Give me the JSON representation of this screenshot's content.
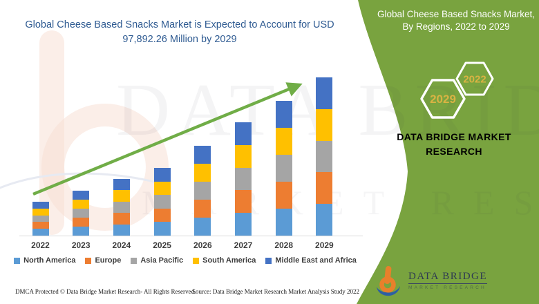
{
  "left_panel": {
    "title": "Global Cheese Based Snacks Market is Expected to Account for USD 97,892.26 Million by 2029"
  },
  "right_panel": {
    "title": "Global Cheese Based Snacks Market, By Regions, 2022 to 2029",
    "hexagons": [
      {
        "label": "2022"
      },
      {
        "label": "2029"
      }
    ],
    "brand_text": "DATA BRIDGE MARKET RESEARCH",
    "logo": {
      "wordmark": "DATA BRIDGE",
      "subtitle": "MARKET RESEARCH"
    },
    "bg_color": "#79A33F",
    "accent_gold": "#D9B343",
    "title_color": "#FFFFFF"
  },
  "watermark": {
    "line1": "DATA BRIDGE",
    "line2": "MARKET RESEARCH"
  },
  "footer": {
    "left": "DMCA Protected © Data Bridge Market Research- All Rights Reserved.",
    "source": "Source: Data Bridge Market Research Market Analysis Study 2022"
  },
  "chart_data": {
    "type": "bar",
    "stacked": true,
    "title": "Global Cheese Based Snacks Market is Expected to Account for USD 97,892.26 Million by 2029",
    "units": "USD Million (only 2029 total labeled; other values estimated from bar heights)",
    "categories": [
      "2022",
      "2023",
      "2024",
      "2025",
      "2026",
      "2027",
      "2028",
      "2029"
    ],
    "totals": [
      20900,
      27800,
      35100,
      41900,
      55600,
      70100,
      83400,
      97892.26
    ],
    "series": [
      {
        "name": "North America",
        "color": "#5B9BD5",
        "values": [
          4180,
          5560,
          7020,
          8380,
          11120,
          14020,
          16680,
          19578.45
        ]
      },
      {
        "name": "Europe",
        "color": "#ED7D31",
        "values": [
          4180,
          5560,
          7020,
          8380,
          11120,
          14020,
          16680,
          19578.45
        ]
      },
      {
        "name": "Asia Pacific",
        "color": "#A5A5A5",
        "values": [
          4180,
          5560,
          7020,
          8380,
          11120,
          14020,
          16680,
          19578.45
        ]
      },
      {
        "name": "South America",
        "color": "#FFC000",
        "values": [
          4180,
          5560,
          7020,
          8380,
          11120,
          14020,
          16680,
          19578.45
        ]
      },
      {
        "name": "Middle East and Africa",
        "color": "#4472C4",
        "values": [
          4180,
          5560,
          7020,
          8380,
          11120,
          14020,
          16680,
          19578.45
        ]
      }
    ],
    "labeled_value": {
      "year": "2029",
      "total_label": "USD 97,892.26 Million"
    },
    "trend_arrow": true,
    "trend_arrow_color": "#70AD47",
    "axes_hidden": true,
    "legend_position": "bottom",
    "grid": false
  }
}
